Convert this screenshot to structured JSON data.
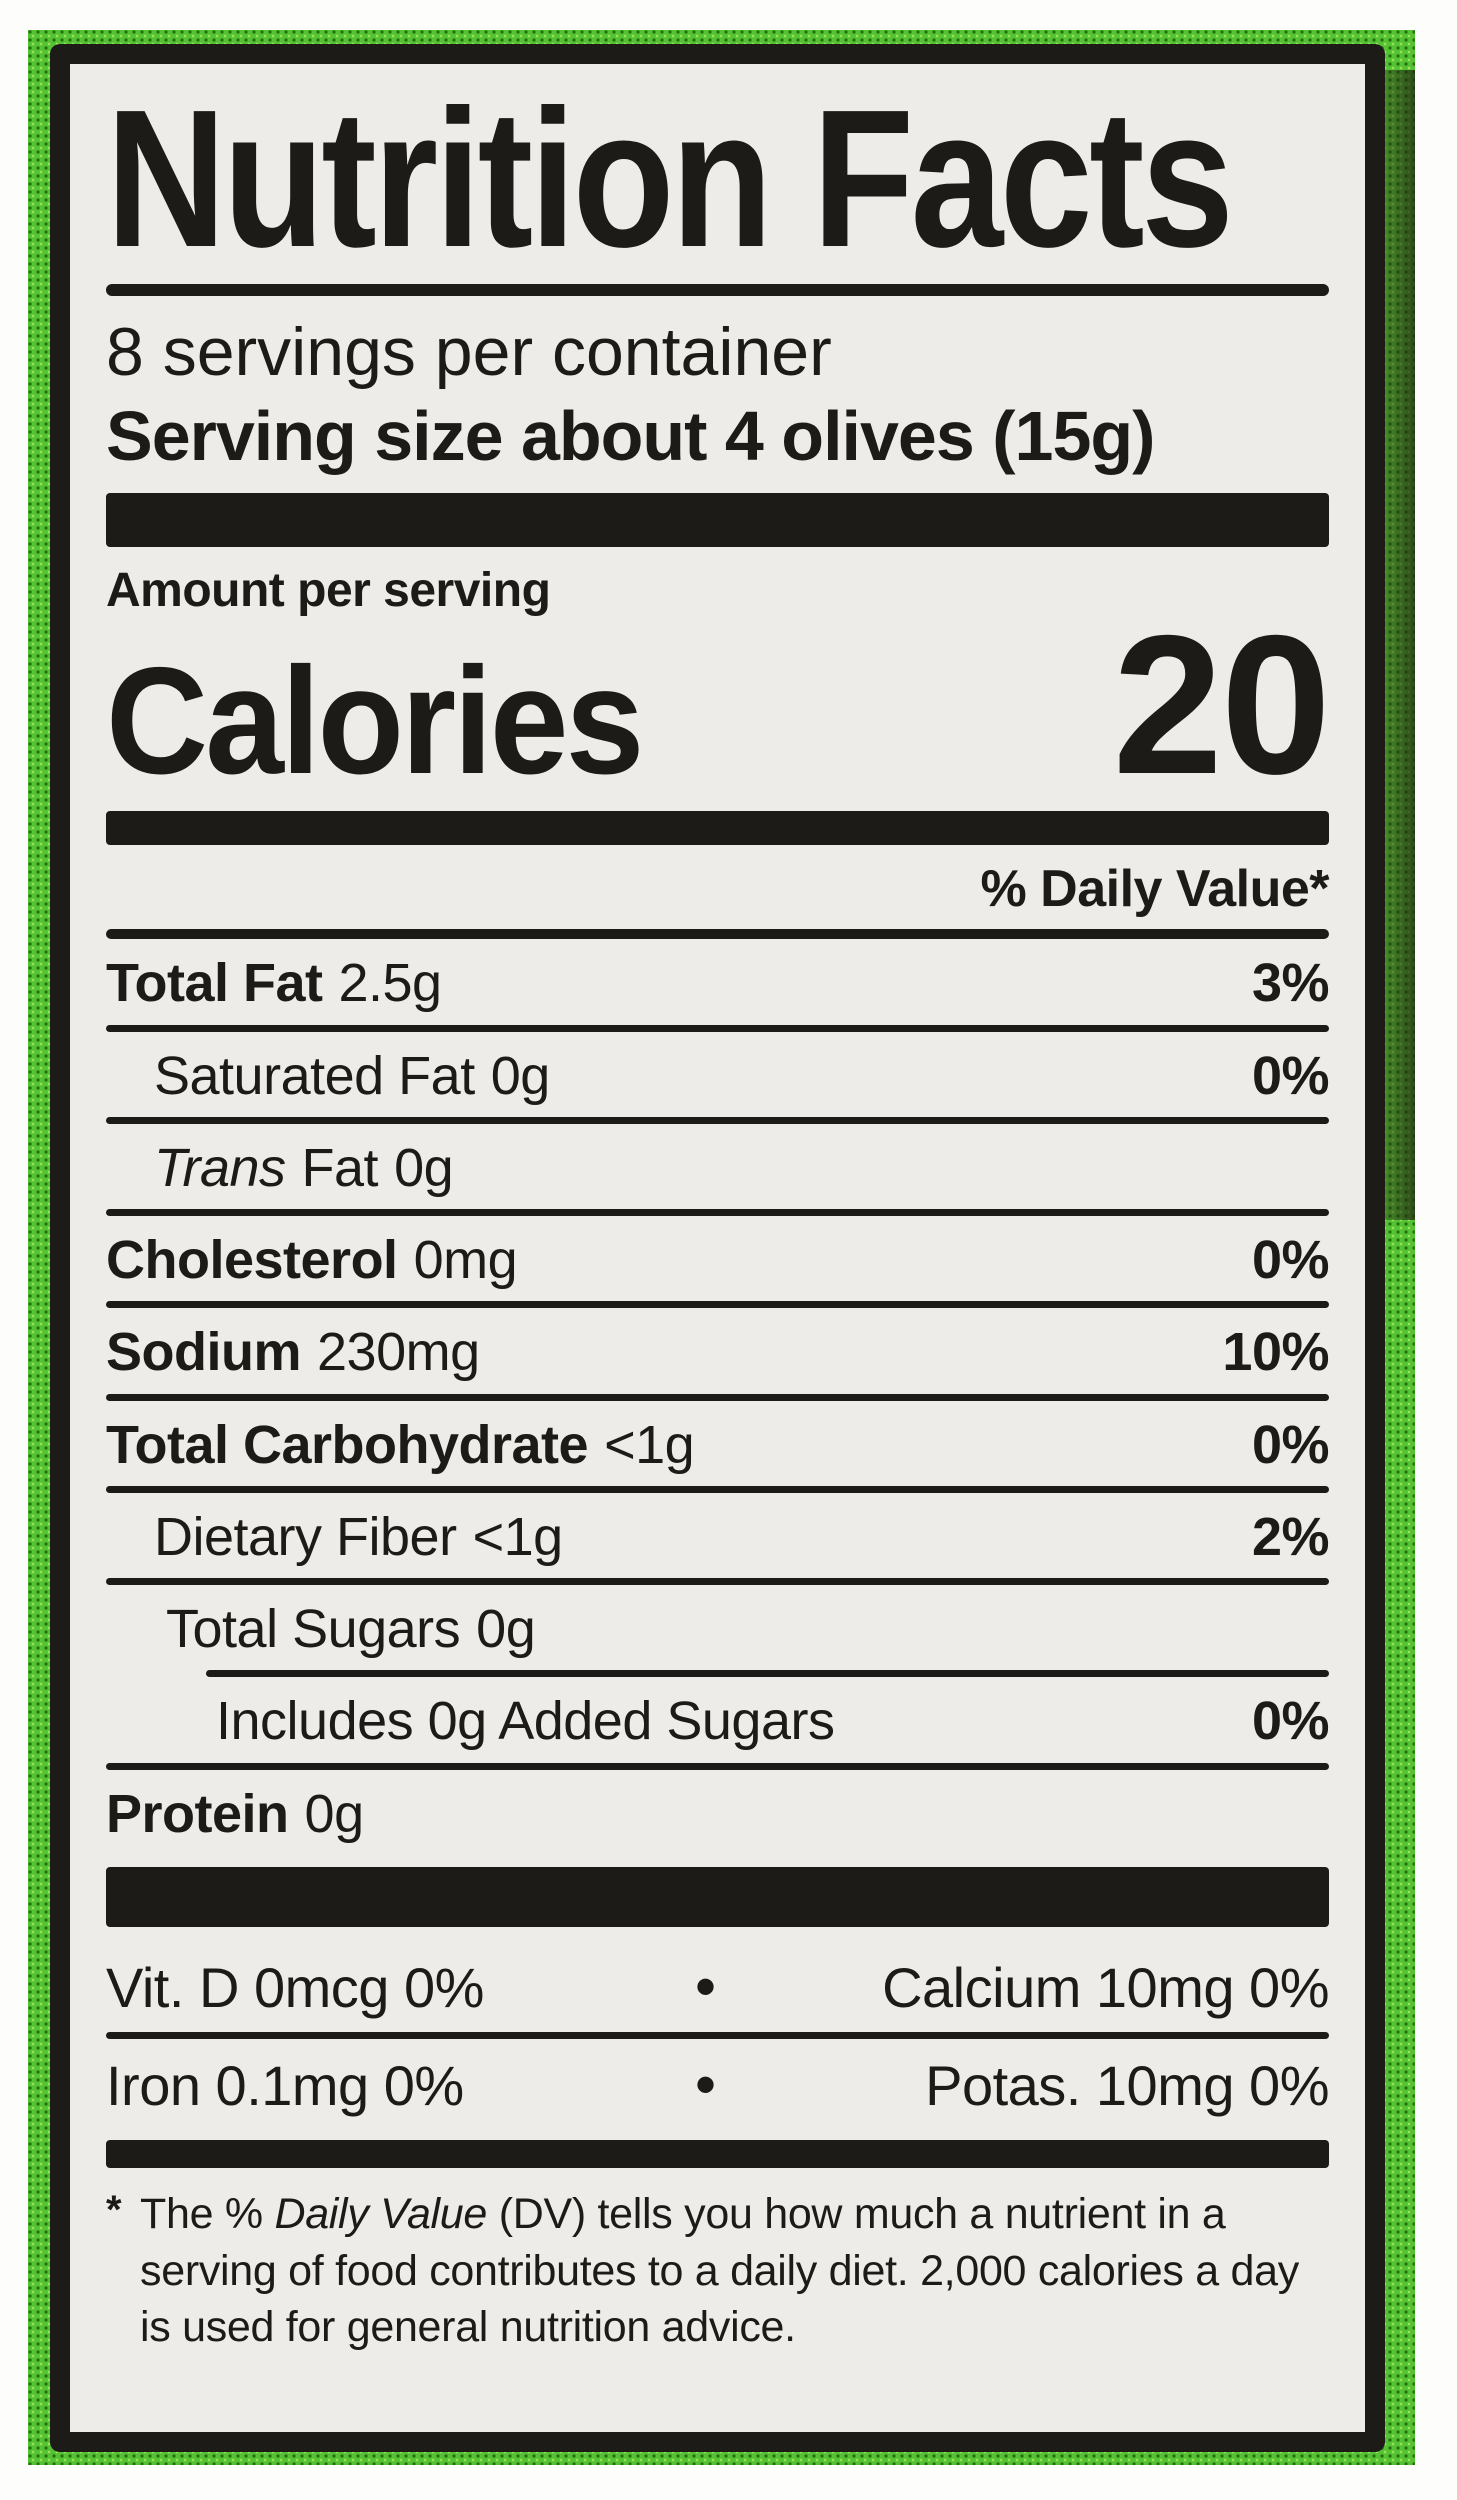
{
  "colors": {
    "package_green": "#54c233",
    "package_dot_dark": "#266f12",
    "label_background": "#edece8",
    "ink_black": "#1d1b17"
  },
  "label": {
    "title": "Nutrition Facts",
    "servings_per_container": "8 servings per container",
    "serving_size_line": "Serving size about 4 olives (15g)",
    "amount_per_serving": "Amount per serving",
    "calories_label": "Calories",
    "calories_value": "20",
    "daily_value_header": "% Daily Value*",
    "rows": [
      {
        "name": "Total Fat",
        "amount": "2.5g",
        "dv": "3%"
      },
      {
        "name": "Saturated Fat",
        "amount": "0g",
        "dv": "0%"
      },
      {
        "name_italic": "Trans",
        "name": "Fat",
        "amount": "0g",
        "dv": ""
      },
      {
        "name": "Cholesterol",
        "amount": "0mg",
        "dv": "0%"
      },
      {
        "name": "Sodium",
        "amount": "230mg",
        "dv": "10%"
      },
      {
        "name": "Total Carbohydrate",
        "amount": "<1g",
        "dv": "0%"
      },
      {
        "name": "Dietary Fiber",
        "amount": "<1g",
        "dv": "2%"
      },
      {
        "name": "Total Sugars",
        "amount": "0g",
        "dv": ""
      },
      {
        "name": "Includes 0g Added Sugars",
        "amount": "",
        "dv": "0%"
      },
      {
        "name": "Protein",
        "amount": "0g",
        "dv": ""
      }
    ],
    "micronutrients": {
      "bullet": "•",
      "rows": [
        {
          "left": "Vit. D 0mcg 0%",
          "right": "Calcium 10mg 0%"
        },
        {
          "left": "Iron 0.1mg 0%",
          "right": "Potas. 10mg 0%"
        }
      ]
    },
    "footnote": {
      "marker": "*",
      "part1": "The % ",
      "italic": "Daily Value",
      "part2": " (DV) tells you how much a nutrient in a serving of food contributes to a daily diet. 2,000 calories a day is used for general nutrition advice."
    }
  }
}
